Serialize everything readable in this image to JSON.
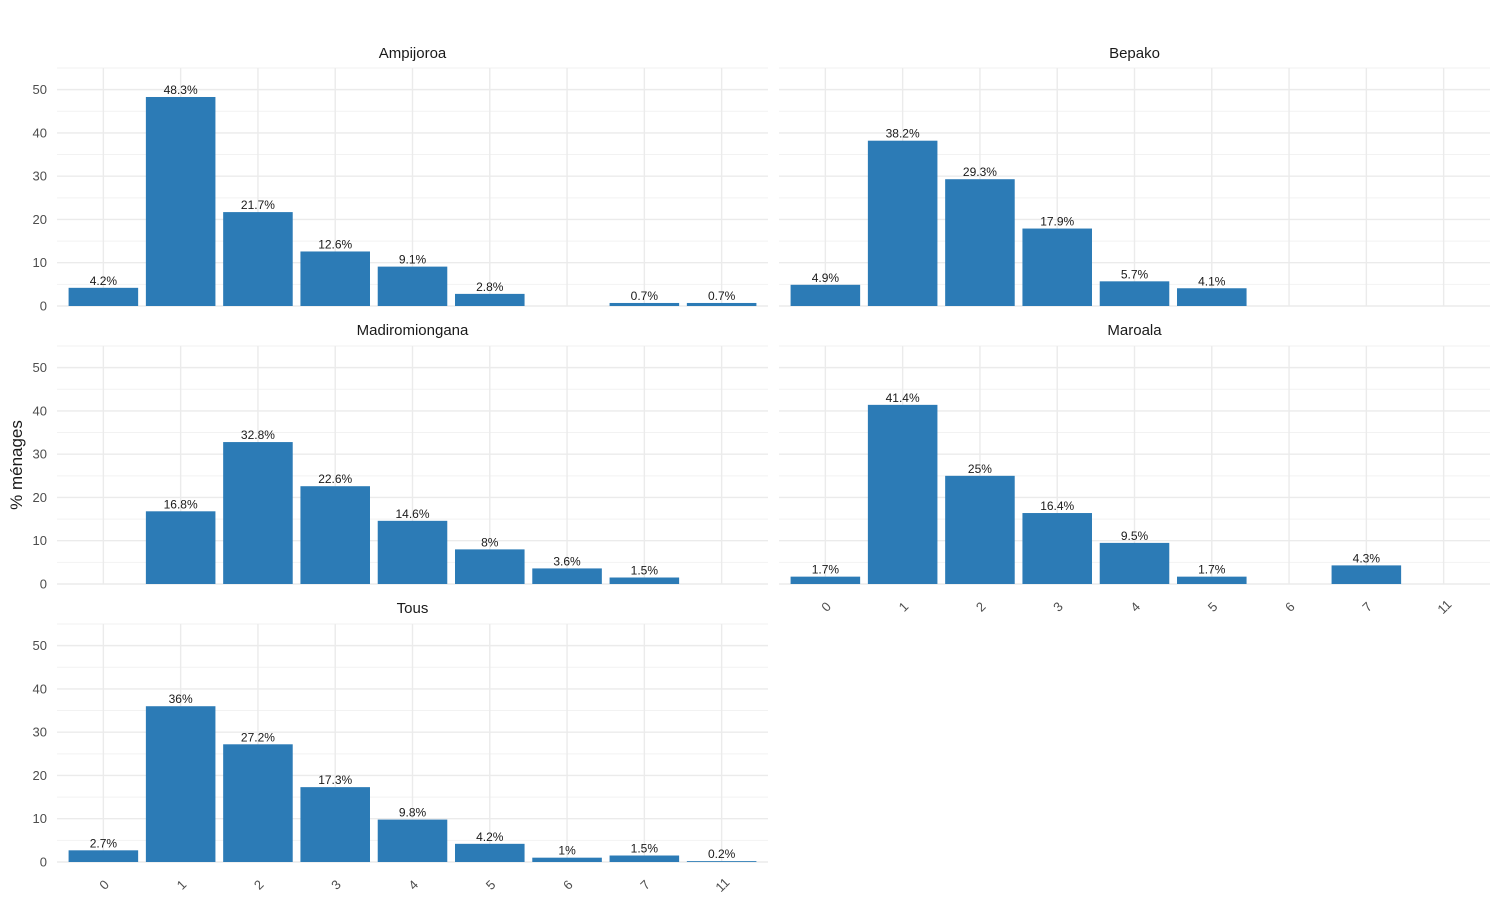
{
  "chart_data": {
    "type": "bar",
    "ylabel": "% ménages",
    "xlabel": "",
    "ylim": [
      0,
      55
    ],
    "y_ticks": [
      0,
      10,
      20,
      30,
      40,
      50
    ],
    "grid": true,
    "bar_color": "#2c7bb6",
    "categories": [
      "0",
      "1",
      "2",
      "3",
      "4",
      "5",
      "6",
      "7",
      "11"
    ],
    "panels": [
      {
        "title": "Ampijoroa",
        "values": [
          4.2,
          48.3,
          21.7,
          12.6,
          9.1,
          2.8,
          null,
          0.7,
          0.7
        ],
        "labels": [
          "4.2%",
          "48.3%",
          "21.7%",
          "12.6%",
          "9.1%",
          "2.8%",
          "",
          "0.7%",
          "0.7%"
        ]
      },
      {
        "title": "Bepako",
        "values": [
          4.9,
          38.2,
          29.3,
          17.9,
          5.7,
          4.1,
          null,
          null,
          null
        ],
        "labels": [
          "4.9%",
          "38.2%",
          "29.3%",
          "17.9%",
          "5.7%",
          "4.1%",
          "",
          "",
          ""
        ]
      },
      {
        "title": "Madiromiongana",
        "values": [
          null,
          16.8,
          32.8,
          22.6,
          14.6,
          8,
          3.6,
          1.5,
          null
        ],
        "labels": [
          "",
          "16.8%",
          "32.8%",
          "22.6%",
          "14.6%",
          "8%",
          "3.6%",
          "1.5%",
          ""
        ]
      },
      {
        "title": "Maroala",
        "values": [
          1.7,
          41.4,
          25,
          16.4,
          9.5,
          1.7,
          null,
          4.3,
          null
        ],
        "labels": [
          "1.7%",
          "41.4%",
          "25%",
          "16.4%",
          "9.5%",
          "1.7%",
          "",
          "4.3%",
          ""
        ]
      },
      {
        "title": "Tous",
        "values": [
          2.7,
          36,
          27.2,
          17.3,
          9.8,
          4.2,
          1,
          1.5,
          0.2
        ],
        "labels": [
          "2.7%",
          "36%",
          "27.2%",
          "17.3%",
          "9.8%",
          "4.2%",
          "1%",
          "1.5%",
          "0.2%"
        ]
      }
    ]
  }
}
